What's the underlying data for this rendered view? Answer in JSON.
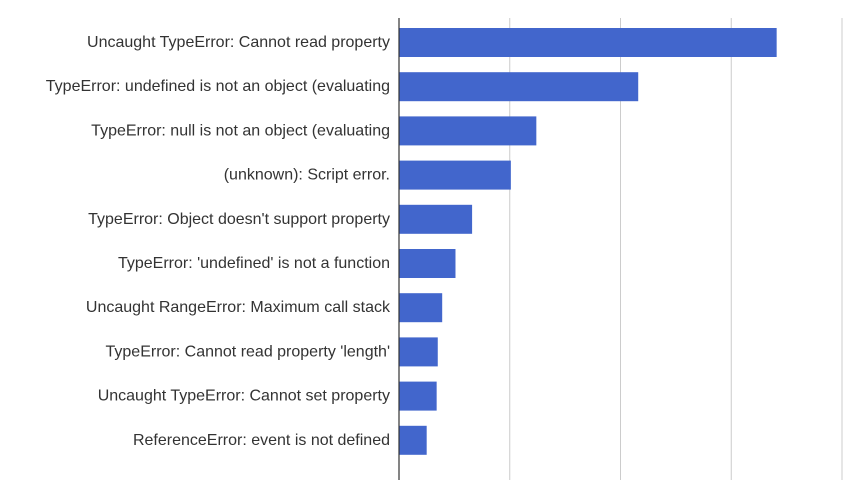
{
  "chart_data": {
    "type": "bar",
    "orientation": "horizontal",
    "categories": [
      "Uncaught TypeError: Cannot read property",
      "TypeError: undefined is not an object (evaluating",
      "TypeError: null is not an object (evaluating",
      "(unknown): Script error.",
      "TypeError: Object doesn't support property",
      "TypeError: 'undefined' is not a function",
      "Uncaught RangeError: Maximum call stack",
      "TypeError: Cannot read property 'length'",
      "Uncaught TypeError: Cannot set property",
      "ReferenceError: event is not defined"
    ],
    "values": [
      3.41,
      2.16,
      1.24,
      1.01,
      0.66,
      0.51,
      0.39,
      0.35,
      0.34,
      0.25
    ],
    "xlim": [
      0,
      4
    ],
    "grid": true,
    "bar_color": "#4266cc",
    "grid_color": "#cccccc",
    "axis_color": "#333333",
    "title": "",
    "xlabel": "",
    "ylabel": ""
  }
}
